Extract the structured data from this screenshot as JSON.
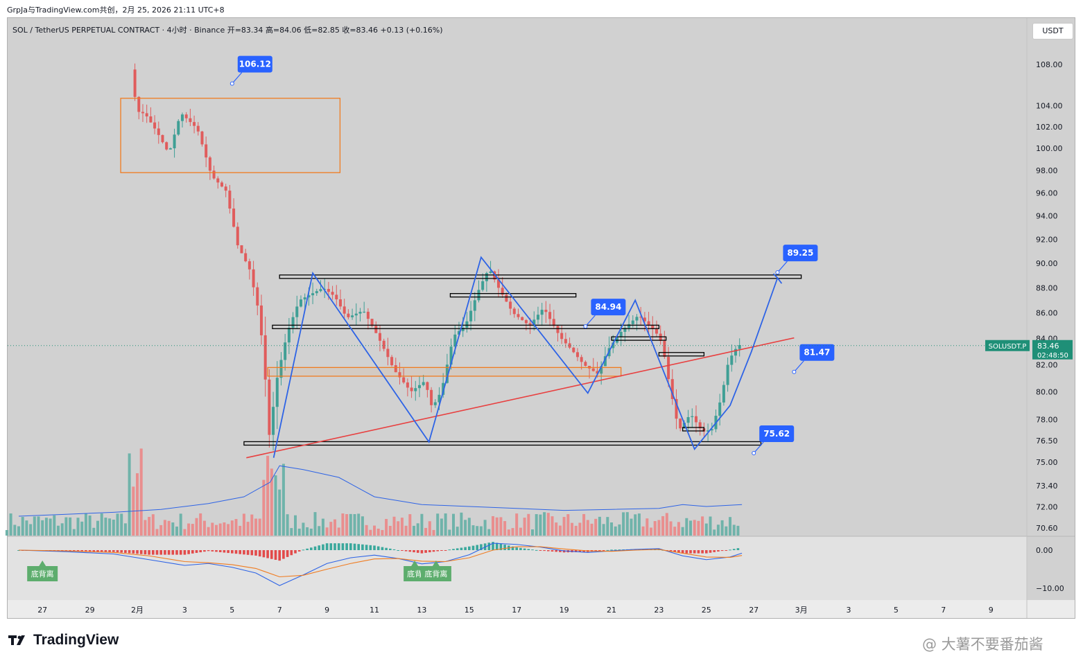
{
  "header": {
    "publish_line": "GrpJa与TradingView.com共创，2月 25, 2026 21:11 UTC+8",
    "symbol_line": "SOL / TetherUS PERPETUAL CONTRACT · 4小时 · Binance  开=83.34  高=84.06  低=82.85  收=83.46  +0.13 (+0.16%)",
    "currency_button": "USDT"
  },
  "footer": {
    "brand": "TradingView",
    "watermark": "@ 大薯不要番茄酱"
  },
  "colors": {
    "background": "#d1d1d1",
    "bull": "#3f9f95",
    "bear": "#e05c5c",
    "pattern_line": "#2d63e6",
    "trend_line": "#e84040",
    "zone": "#f07b1f",
    "label_bg": "#2962ff",
    "price_tag": "#1f8f77"
  },
  "chart_data": {
    "type": "candlestick",
    "symbol": "SOLUSDT.P",
    "timeframe": "4小时",
    "y_axis": {
      "scale": "log",
      "ticks": [
        "108.00",
        "104.00",
        "102.00",
        "100.00",
        "98.00",
        "96.00",
        "94.00",
        "92.00",
        "90.00",
        "88.00",
        "86.00",
        "84.00",
        "82.00",
        "80.00",
        "78.00",
        "76.50",
        "75.00",
        "73.40",
        "72.00",
        "70.60"
      ],
      "tick_values": [
        108,
        104,
        102,
        100,
        98,
        96,
        94,
        92,
        90,
        88,
        86,
        84,
        82,
        80,
        78,
        76.5,
        75,
        73.4,
        72,
        70.6
      ]
    },
    "x_axis": {
      "ticks": [
        "27",
        "29",
        "2月",
        "3",
        "5",
        "7",
        "9",
        "11",
        "13",
        "15",
        "17",
        "19",
        "21",
        "23",
        "25",
        "27",
        "3月",
        "3",
        "5",
        "7",
        "9"
      ],
      "tick_days": [
        -4,
        -2,
        0,
        2,
        4,
        6,
        8,
        10,
        12,
        14,
        16,
        18,
        20,
        22,
        24,
        26,
        28,
        30,
        32,
        34,
        36
      ]
    },
    "current_price": {
      "label": "SOLUSDT.P",
      "value": "83.46",
      "countdown": "02:48:50"
    },
    "price_anchors": [
      {
        "day": 0.0,
        "price": 107.5
      },
      {
        "day": 0.1,
        "price": 103.5
      },
      {
        "day": 0.5,
        "price": 103.2
      },
      {
        "day": 1.0,
        "price": 101.5
      },
      {
        "day": 1.5,
        "price": 99.5
      },
      {
        "day": 2.0,
        "price": 103.3
      },
      {
        "day": 2.7,
        "price": 101.8
      },
      {
        "day": 3.3,
        "price": 97.5
      },
      {
        "day": 3.9,
        "price": 96.2
      },
      {
        "day": 4.4,
        "price": 91.5
      },
      {
        "day": 4.9,
        "price": 89.5
      },
      {
        "day": 5.3,
        "price": 86.0
      },
      {
        "day": 5.5,
        "price": 82.5
      },
      {
        "day": 5.75,
        "price": 76.5
      },
      {
        "day": 6.0,
        "price": 80.5
      },
      {
        "day": 6.5,
        "price": 84.5
      },
      {
        "day": 7.0,
        "price": 87.0
      },
      {
        "day": 7.5,
        "price": 87.5
      },
      {
        "day": 8.0,
        "price": 88.0
      },
      {
        "day": 8.5,
        "price": 87.3
      },
      {
        "day": 9.0,
        "price": 85.6
      },
      {
        "day": 9.7,
        "price": 86.2
      },
      {
        "day": 10.3,
        "price": 84.2
      },
      {
        "day": 11.0,
        "price": 81.6
      },
      {
        "day": 11.7,
        "price": 80.0
      },
      {
        "day": 12.3,
        "price": 80.8
      },
      {
        "day": 12.6,
        "price": 78.8
      },
      {
        "day": 13.0,
        "price": 80.1
      },
      {
        "day": 13.5,
        "price": 84.2
      },
      {
        "day": 14.0,
        "price": 85.0
      },
      {
        "day": 14.6,
        "price": 88.0
      },
      {
        "day": 15.0,
        "price": 89.6
      },
      {
        "day": 15.4,
        "price": 88.0
      },
      {
        "day": 16.0,
        "price": 86.0
      },
      {
        "day": 16.7,
        "price": 85.0
      },
      {
        "day": 17.3,
        "price": 86.4
      },
      {
        "day": 18.0,
        "price": 84.1
      },
      {
        "day": 18.5,
        "price": 83.1
      },
      {
        "day": 19.0,
        "price": 82.0
      },
      {
        "day": 19.6,
        "price": 81.3
      },
      {
        "day": 20.0,
        "price": 83.1
      },
      {
        "day": 20.6,
        "price": 84.6
      },
      {
        "day": 21.3,
        "price": 85.8
      },
      {
        "day": 22.0,
        "price": 84.6
      },
      {
        "day": 22.3,
        "price": 83.6
      },
      {
        "day": 22.6,
        "price": 80.6
      },
      {
        "day": 23.0,
        "price": 77.2
      },
      {
        "day": 23.5,
        "price": 78.4
      },
      {
        "day": 24.0,
        "price": 77.1
      },
      {
        "day": 24.4,
        "price": 77.3
      },
      {
        "day": 24.8,
        "price": 79.6
      },
      {
        "day": 25.1,
        "price": 82.3
      },
      {
        "day": 25.5,
        "price": 83.5
      }
    ],
    "volume_avg_line": [
      {
        "day": -5.0,
        "v": 0.2
      },
      {
        "day": -3.0,
        "v": 0.22
      },
      {
        "day": -1.0,
        "v": 0.24
      },
      {
        "day": 1.0,
        "v": 0.27
      },
      {
        "day": 3.0,
        "v": 0.33
      },
      {
        "day": 4.5,
        "v": 0.4
      },
      {
        "day": 5.6,
        "v": 0.55
      },
      {
        "day": 6.0,
        "v": 0.72
      },
      {
        "day": 7.0,
        "v": 0.68
      },
      {
        "day": 8.5,
        "v": 0.6
      },
      {
        "day": 10.0,
        "v": 0.4
      },
      {
        "day": 12.0,
        "v": 0.32
      },
      {
        "day": 14.0,
        "v": 0.3
      },
      {
        "day": 16.0,
        "v": 0.28
      },
      {
        "day": 18.0,
        "v": 0.26
      },
      {
        "day": 20.0,
        "v": 0.27
      },
      {
        "day": 22.0,
        "v": 0.28
      },
      {
        "day": 23.0,
        "v": 0.32
      },
      {
        "day": 24.0,
        "v": 0.3
      },
      {
        "day": 25.5,
        "v": 0.32
      }
    ],
    "macd_axis_ticks": [
      "0.00",
      "−10.00"
    ],
    "macd_axis_values": [
      0,
      -10
    ],
    "macd_line": [
      {
        "day": -5.0,
        "v": 0.0
      },
      {
        "day": -3.0,
        "v": -0.4
      },
      {
        "day": -1.0,
        "v": -1.0
      },
      {
        "day": 0.5,
        "v": -2.5
      },
      {
        "day": 2.0,
        "v": -4.0
      },
      {
        "day": 3.0,
        "v": -3.5
      },
      {
        "day": 4.0,
        "v": -4.5
      },
      {
        "day": 5.0,
        "v": -6.0
      },
      {
        "day": 6.0,
        "v": -9.3
      },
      {
        "day": 7.0,
        "v": -6.5
      },
      {
        "day": 8.0,
        "v": -3.5
      },
      {
        "day": 9.0,
        "v": -2.0
      },
      {
        "day": 10.0,
        "v": -1.3
      },
      {
        "day": 11.0,
        "v": -2.2
      },
      {
        "day": 12.0,
        "v": -3.6
      },
      {
        "day": 13.0,
        "v": -3.0
      },
      {
        "day": 14.0,
        "v": -1.2
      },
      {
        "day": 15.0,
        "v": 1.8
      },
      {
        "day": 16.0,
        "v": 1.5
      },
      {
        "day": 17.0,
        "v": 0.8
      },
      {
        "day": 18.0,
        "v": -0.2
      },
      {
        "day": 19.0,
        "v": -0.6
      },
      {
        "day": 20.0,
        "v": -0.2
      },
      {
        "day": 21.0,
        "v": 0.2
      },
      {
        "day": 22.0,
        "v": 0.4
      },
      {
        "day": 23.0,
        "v": -1.5
      },
      {
        "day": 24.0,
        "v": -2.5
      },
      {
        "day": 25.0,
        "v": -1.8
      },
      {
        "day": 25.5,
        "v": -0.8
      }
    ],
    "macd_signal": [
      {
        "day": -5.0,
        "v": 0.0
      },
      {
        "day": -3.0,
        "v": -0.2
      },
      {
        "day": -1.0,
        "v": -0.6
      },
      {
        "day": 0.5,
        "v": -1.5
      },
      {
        "day": 2.0,
        "v": -3.0
      },
      {
        "day": 3.0,
        "v": -3.3
      },
      {
        "day": 4.0,
        "v": -3.8
      },
      {
        "day": 5.0,
        "v": -4.8
      },
      {
        "day": 6.0,
        "v": -7.0
      },
      {
        "day": 7.0,
        "v": -6.6
      },
      {
        "day": 8.0,
        "v": -5.0
      },
      {
        "day": 9.0,
        "v": -3.5
      },
      {
        "day": 10.0,
        "v": -2.3
      },
      {
        "day": 11.0,
        "v": -2.2
      },
      {
        "day": 12.0,
        "v": -2.9
      },
      {
        "day": 13.0,
        "v": -3.0
      },
      {
        "day": 14.0,
        "v": -2.0
      },
      {
        "day": 15.0,
        "v": 0.0
      },
      {
        "day": 16.0,
        "v": 0.9
      },
      {
        "day": 17.0,
        "v": 0.9
      },
      {
        "day": 18.0,
        "v": 0.3
      },
      {
        "day": 19.0,
        "v": -0.2
      },
      {
        "day": 20.0,
        "v": -0.3
      },
      {
        "day": 21.0,
        "v": 0.0
      },
      {
        "day": 22.0,
        "v": 0.2
      },
      {
        "day": 23.0,
        "v": -0.8
      },
      {
        "day": 24.0,
        "v": -1.8
      },
      {
        "day": 25.0,
        "v": -1.9
      },
      {
        "day": 25.5,
        "v": -1.4
      }
    ],
    "macd_labels": [
      {
        "text": "底背离",
        "day": -4.0
      },
      {
        "text": "底背",
        "day": 11.7
      },
      {
        "text": "底背离",
        "day": 12.6
      }
    ],
    "drawings": {
      "orange_rect_top": {
        "day_start": -0.7,
        "day_end": 8.55,
        "price_high": 104.7,
        "price_low": 97.8
      },
      "orange_zone": {
        "day_start": 5.5,
        "day_end": 20.4,
        "price_high": 81.8,
        "price_low": 81.15
      },
      "trend_line": {
        "day_start": 4.6,
        "price_start": 75.3,
        "day_end": 27.7,
        "price_end": 84.05
      },
      "black_bars": [
        {
          "day_start": 6.0,
          "day_end": 28.0,
          "price": 88.9
        },
        {
          "day_start": 5.7,
          "day_end": 22.0,
          "price": 84.9
        },
        {
          "day_start": 13.2,
          "day_end": 18.5,
          "price": 87.4
        },
        {
          "day_start": 20.0,
          "day_end": 22.3,
          "price": 84.0
        },
        {
          "day_start": 22.0,
          "day_end": 23.9,
          "price": 82.8
        },
        {
          "day_start": 23.0,
          "day_end": 23.9,
          "price": 77.3
        },
        {
          "day_start": 4.5,
          "day_end": 26.3,
          "price": 76.3
        }
      ],
      "pattern_path": [
        {
          "day": 5.75,
          "price": 75.3
        },
        {
          "day": 7.4,
          "price": 89.2
        },
        {
          "day": 12.3,
          "price": 76.4
        },
        {
          "day": 14.5,
          "price": 90.5
        },
        {
          "day": 19.0,
          "price": 79.9
        },
        {
          "day": 21.0,
          "price": 87.0
        },
        {
          "day": 23.5,
          "price": 75.9
        },
        {
          "day": 25.0,
          "price": 79.0
        },
        {
          "day": 25.9,
          "price": 83.0
        },
        {
          "day": 27.0,
          "price": 88.8
        }
      ],
      "callouts": [
        {
          "text": "106.12",
          "day": 4.0,
          "price": 106.12
        },
        {
          "text": "89.25",
          "day": 27.0,
          "price": 89.25
        },
        {
          "text": "84.94",
          "day": 18.9,
          "price": 84.94
        },
        {
          "text": "81.47",
          "day": 27.7,
          "price": 81.47
        },
        {
          "text": "75.62",
          "day": 26.0,
          "price": 75.62
        }
      ]
    }
  }
}
